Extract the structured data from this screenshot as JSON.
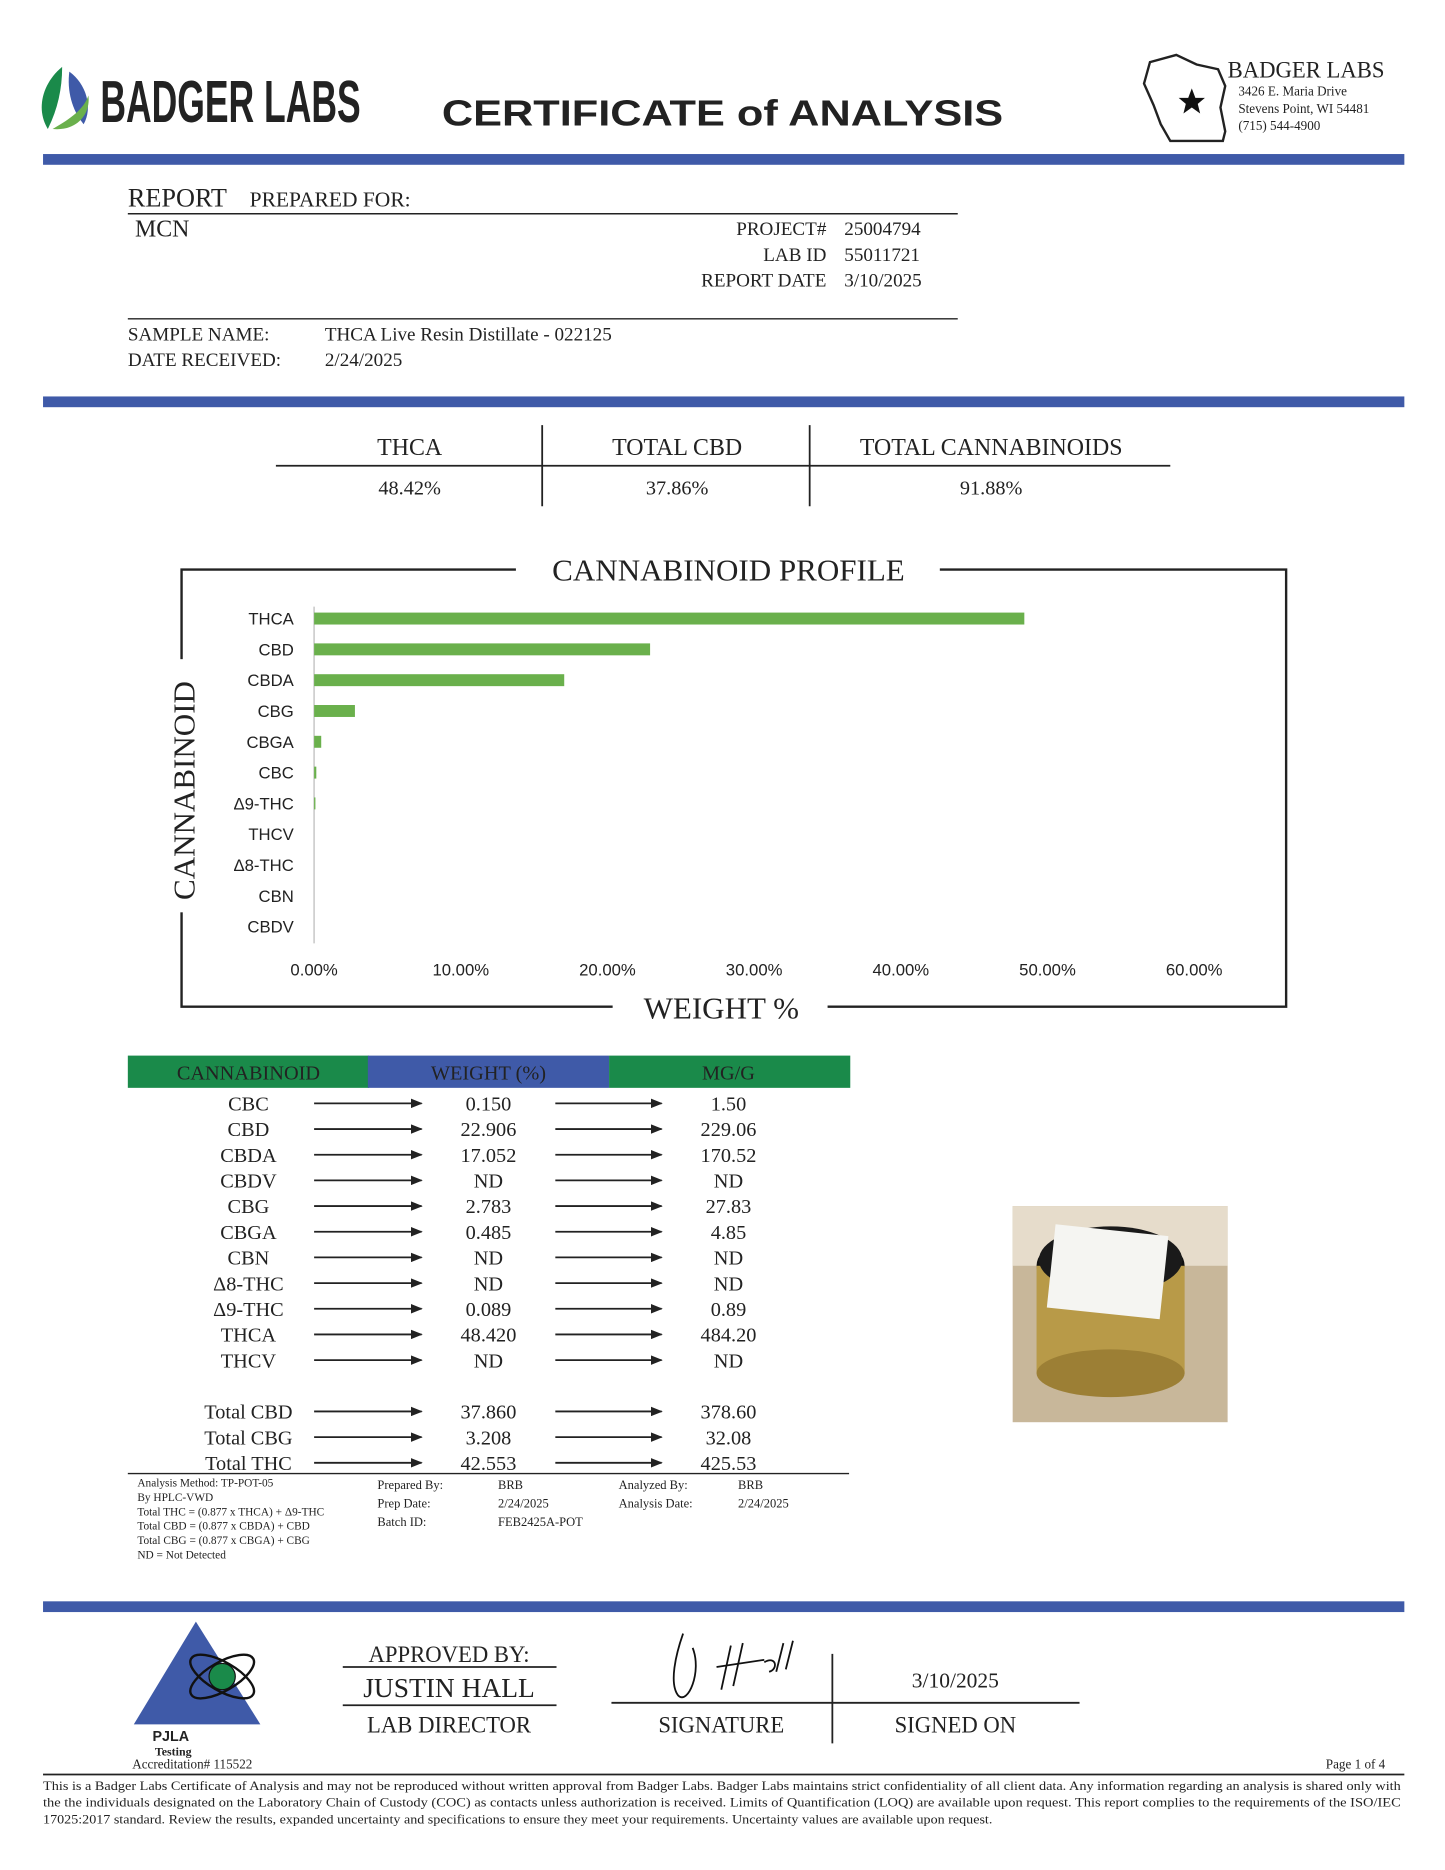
{
  "header": {
    "logo_text": "BADGER LABS",
    "title": "CERTIFICATE of ANALYSIS",
    "address": {
      "name": "BADGER LABS",
      "lines": [
        "3426 E. Maria Drive",
        "Stevens Point, WI 54481",
        "(715) 544-4900"
      ]
    }
  },
  "report": {
    "heading": "REPORT",
    "heading_rest": "PREPARED FOR:",
    "client": "MCN",
    "fields": [
      {
        "label": "PROJECT#",
        "value": "25004794"
      },
      {
        "label": "LAB ID",
        "value": "55011721"
      },
      {
        "label": "REPORT DATE",
        "value": "3/10/2025"
      }
    ],
    "sample": [
      {
        "label": "SAMPLE NAME:",
        "value": "THCA Live Resin Distillate - 022125"
      },
      {
        "label": "DATE RECEIVED:",
        "value": "2/24/2025"
      }
    ]
  },
  "summary": [
    {
      "label": "THCA",
      "value": "48.42%"
    },
    {
      "label": "TOTAL CBD",
      "value": "37.86%"
    },
    {
      "label": "TOTAL CANNABINOIDS",
      "value": "91.88%"
    }
  ],
  "chart_data": {
    "type": "bar",
    "orientation": "horizontal",
    "title": "CANNABINOID PROFILE",
    "xlabel": "WEIGHT %",
    "ylabel": "CANNABINOID",
    "categories": [
      "THCA",
      "CBD",
      "CBDA",
      "CBG",
      "CBGA",
      "CBC",
      "Δ9-THC",
      "THCV",
      "Δ8-THC",
      "CBN",
      "CBDV"
    ],
    "values": [
      48.42,
      22.906,
      17.052,
      2.783,
      0.485,
      0.15,
      0.089,
      0,
      0,
      0,
      0
    ],
    "color": "#6ab04c",
    "xlim": [
      0,
      60
    ],
    "xticks": [
      {
        "value": 0,
        "label": "0.00%"
      },
      {
        "value": 10,
        "label": "10.00%"
      },
      {
        "value": 20,
        "label": "20.00%"
      },
      {
        "value": 30,
        "label": "30.00%"
      },
      {
        "value": 40,
        "label": "40.00%"
      },
      {
        "value": 50,
        "label": "50.00%"
      },
      {
        "value": 60,
        "label": "60.00%"
      }
    ]
  },
  "table": {
    "headers": [
      "CANNABINOID",
      "WEIGHT (%)",
      "MG/G"
    ],
    "rows": [
      [
        "CBC",
        "0.150",
        "1.50"
      ],
      [
        "CBD",
        "22.906",
        "229.06"
      ],
      [
        "CBDA",
        "17.052",
        "170.52"
      ],
      [
        "CBDV",
        "ND",
        "ND"
      ],
      [
        "CBG",
        "2.783",
        "27.83"
      ],
      [
        "CBGA",
        "0.485",
        "4.85"
      ],
      [
        "CBN",
        "ND",
        "ND"
      ],
      [
        "Δ8-THC",
        "ND",
        "ND"
      ],
      [
        "Δ9-THC",
        "0.089",
        "0.89"
      ],
      [
        "THCA",
        "48.420",
        "484.20"
      ],
      [
        "THCV",
        "ND",
        "ND"
      ]
    ],
    "totals": [
      [
        "Total CBD",
        "37.860",
        "378.60"
      ],
      [
        "Total CBG",
        "3.208",
        "32.08"
      ],
      [
        "Total THC",
        "42.553",
        "425.53"
      ]
    ]
  },
  "notes": [
    "Analysis Method: TP-POT-05",
    "By HPLC-VWD",
    "Total THC = (0.877 x  THCA) + Δ9-THC",
    "Total CBD = (0.877 x  CBDA) + CBD",
    "Total CBG = (0.877 x  CBGA) + CBG",
    "ND = Not Detected"
  ],
  "prep": [
    [
      "Prepared By:",
      "BRB"
    ],
    [
      "Prep Date:",
      "2/24/2025"
    ],
    [
      "Batch ID:",
      "FEB2425A-POT"
    ]
  ],
  "analysis": [
    [
      "Analyzed By:",
      "BRB"
    ],
    [
      "Analysis Date:",
      "2/24/2025"
    ]
  ],
  "approval": {
    "approved_by": "APPROVED BY:",
    "name": "JUSTIN HALL",
    "role": "LAB DIRECTOR",
    "signature_label": "SIGNATURE",
    "date": "3/10/2025",
    "signed_on": "SIGNED ON"
  },
  "accreditation": {
    "name": "PJLA",
    "type": "Testing",
    "number": "Accreditation# 115522"
  },
  "page": "Page 1 of 4",
  "footer": [
    "This is a Badger Labs Certificate of Analysis and may not be reproduced without written approval from Badger Labs. Badger Labs maintains strict confidentiality of all client data. Any information regarding an analysis is shared only with",
    "the the individuals designated on the Laboratory Chain of Custody (COC) as contacts unless authorization is received. Limits of Quantification (LOQ) are available upon request. This report complies to the requirements of the ISO/IEC",
    "17025:2017 standard. Review the results, expanded uncertainty and specifications to ensure they meet your requirements. Uncertainty values are available upon request."
  ]
}
